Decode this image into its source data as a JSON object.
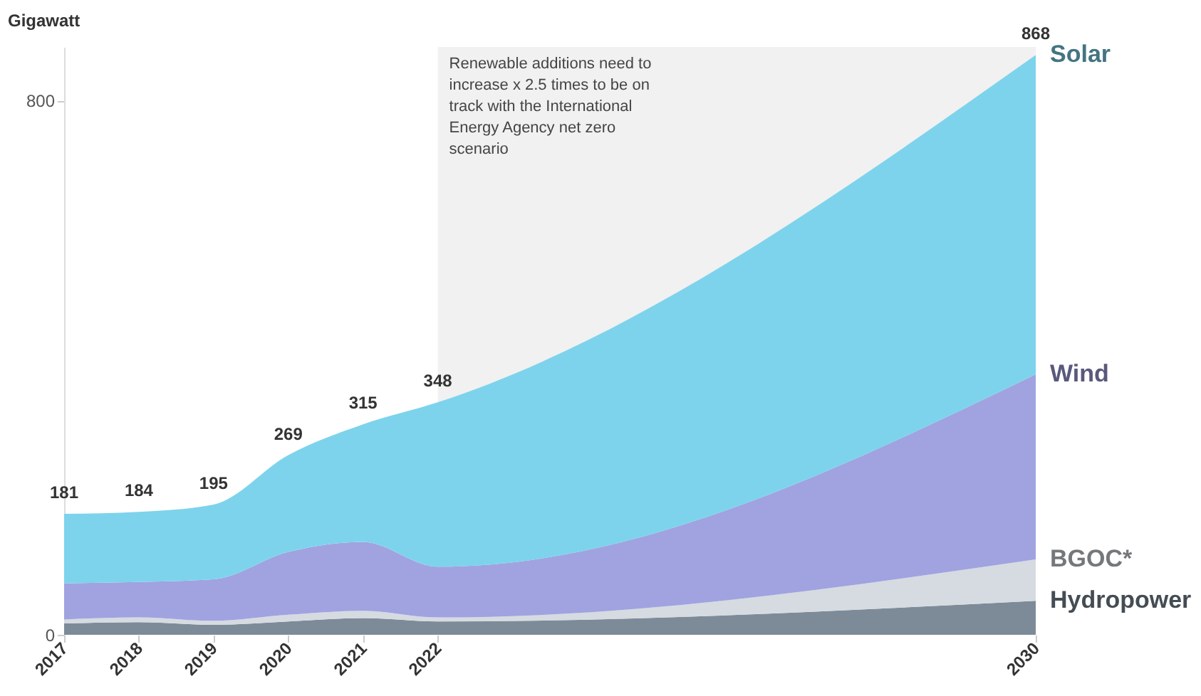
{
  "chart_data": {
    "type": "area",
    "stacked": true,
    "ylabel": "Gigawatt",
    "x": [
      2017,
      2018,
      2019,
      2020,
      2021,
      2022,
      2030
    ],
    "series": [
      {
        "name": "Hydropower",
        "color": "#7d8b99",
        "values": [
          17,
          19,
          15,
          20,
          25,
          20,
          51
        ]
      },
      {
        "name": "BGOC*",
        "color": "#d5dbe0",
        "values": [
          6,
          7,
          6,
          10,
          11,
          6,
          62
        ]
      },
      {
        "name": "Wind",
        "color": "#a0a3e0",
        "values": [
          54,
          53,
          62,
          94,
          103,
          76,
          277
        ]
      },
      {
        "name": "Solar",
        "color": "#7dd3ec",
        "values": [
          104,
          105,
          112,
          145,
          176,
          246,
          478
        ]
      }
    ],
    "totals": [
      "181",
      "184",
      "195",
      "269",
      "315",
      "348",
      "868"
    ],
    "xlim": [
      2017,
      2030
    ],
    "xticks": [
      2017,
      2018,
      2019,
      2020,
      2021,
      2022,
      2030
    ],
    "ylim": [
      0,
      880
    ],
    "yticks": [
      0,
      800
    ],
    "bands": [
      {
        "axis": "x",
        "from": 2022,
        "to": 2030,
        "label": "Renewable additions need to increase x 2.5 times to be on track with the International Energy Agency net zero scenario",
        "color": "#eeeeee"
      }
    ],
    "grid": false,
    "legend": false
  }
}
